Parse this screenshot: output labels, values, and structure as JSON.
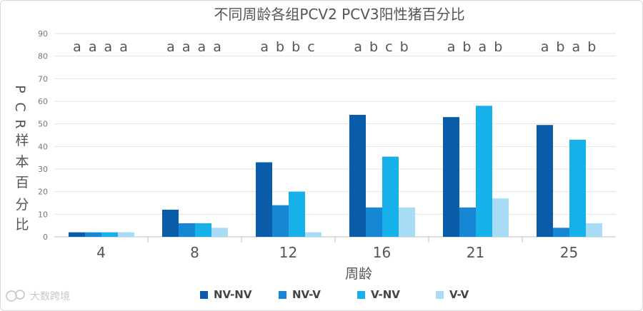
{
  "chart_data": {
    "type": "bar",
    "title": "不同周龄各组PCV2 PCV3阳性猪百分比",
    "xlabel": "周龄",
    "ylabel": "PCR样本百分比",
    "categories": [
      "4",
      "8",
      "12",
      "16",
      "21",
      "25"
    ],
    "series": [
      {
        "name": "NV-NV",
        "color": "#0a5ca8",
        "values": [
          2,
          12,
          33,
          54,
          53,
          49.5
        ]
      },
      {
        "name": "NV-V",
        "color": "#1786d4",
        "values": [
          2,
          6,
          14,
          13,
          13,
          4
        ]
      },
      {
        "name": "V-NV",
        "color": "#16b1e8",
        "values": [
          2,
          6,
          20,
          35.5,
          58,
          43
        ]
      },
      {
        "name": "V-V",
        "color": "#a8dbf4",
        "values": [
          2,
          4,
          2,
          13,
          17,
          6
        ]
      }
    ],
    "ylim": [
      0,
      90
    ],
    "yticks": [
      0,
      10,
      20,
      30,
      40,
      50,
      60,
      70,
      80,
      90
    ],
    "grid": true,
    "legend_position": "bottom",
    "annotations": [
      "a a a a",
      "a a a a",
      "a b b c",
      "a b c b",
      "a b a b",
      "a b a b"
    ]
  },
  "watermark": {
    "icon": "brand-logo-icon",
    "text": "大数跨境"
  }
}
